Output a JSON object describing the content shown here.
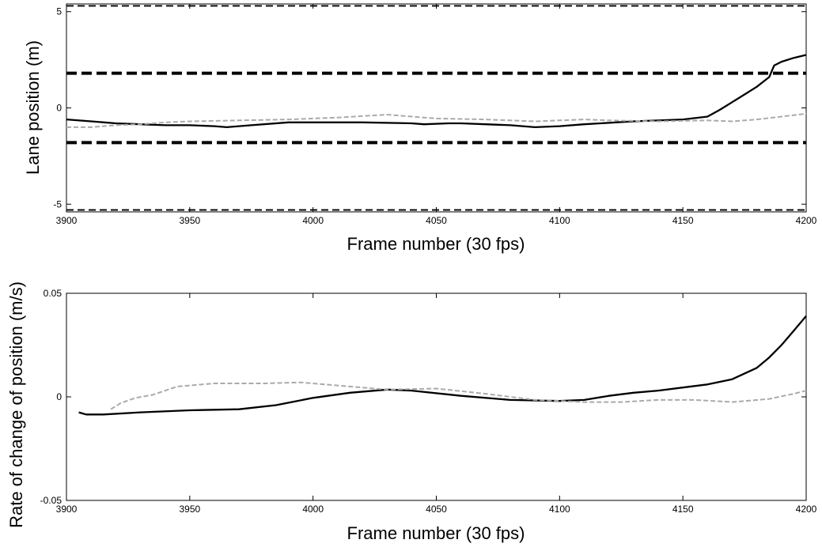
{
  "chart_data": [
    {
      "type": "line",
      "title": "",
      "xlabel": "Frame number (30 fps)",
      "ylabel": "Lane position (m)",
      "xlim": [
        3900,
        4200
      ],
      "ylim": [
        -5.4,
        5.4
      ],
      "xticks": [
        "3900",
        "3950",
        "4000",
        "4050",
        "4100",
        "4150",
        "4200"
      ],
      "yticks": [
        "5",
        "0",
        "-5"
      ],
      "grid": false,
      "series": [
        {
          "style": "solid",
          "color": "#000000",
          "x": [
            3900,
            3910,
            3920,
            3930,
            3940,
            3950,
            3960,
            3965,
            3975,
            3990,
            4000,
            4020,
            4040,
            4045,
            4055,
            4060,
            4070,
            4080,
            4090,
            4100,
            4110,
            4130,
            4150,
            4160,
            4165,
            4170,
            4175,
            4180,
            4183,
            4185,
            4187,
            4190,
            4195,
            4200
          ],
          "y": [
            -0.6,
            -0.7,
            -0.8,
            -0.85,
            -0.9,
            -0.9,
            -0.95,
            -1.0,
            -0.9,
            -0.75,
            -0.75,
            -0.75,
            -0.8,
            -0.85,
            -0.8,
            -0.8,
            -0.85,
            -0.9,
            -1.0,
            -0.95,
            -0.85,
            -0.7,
            -0.6,
            -0.45,
            -0.1,
            0.3,
            0.7,
            1.1,
            1.4,
            1.6,
            2.2,
            2.4,
            2.6,
            2.75
          ]
        },
        {
          "style": "dashed",
          "color": "#aaaaaa",
          "x": [
            3900,
            3910,
            3920,
            3930,
            3940,
            3950,
            3970,
            3990,
            4010,
            4030,
            4050,
            4070,
            4080,
            4090,
            4100,
            4110,
            4120,
            4140,
            4160,
            4170,
            4180,
            4190,
            4200
          ],
          "y": [
            -1.0,
            -1.0,
            -0.9,
            -0.85,
            -0.75,
            -0.7,
            -0.65,
            -0.6,
            -0.5,
            -0.35,
            -0.55,
            -0.6,
            -0.65,
            -0.7,
            -0.65,
            -0.6,
            -0.65,
            -0.7,
            -0.65,
            -0.7,
            -0.6,
            -0.45,
            -0.3
          ]
        }
      ],
      "reference_lines": [
        {
          "y": 5.3,
          "style": "thin-dashed"
        },
        {
          "y": 1.8,
          "style": "thick-dashed"
        },
        {
          "y": -1.8,
          "style": "thick-dashed"
        },
        {
          "y": -5.3,
          "style": "thin-dashed"
        }
      ]
    },
    {
      "type": "line",
      "title": "",
      "xlabel": "Frame number (30 fps)",
      "ylabel": "Rate of change of position (m/s)",
      "xlim": [
        3900,
        4200
      ],
      "ylim": [
        -0.05,
        0.05
      ],
      "xticks": [
        "3900",
        "3950",
        "4000",
        "4050",
        "4100",
        "4150",
        "4200"
      ],
      "yticks": [
        "0.05",
        "0",
        "-0.05"
      ],
      "grid": false,
      "series": [
        {
          "style": "solid",
          "color": "#000000",
          "x": [
            3905,
            3908,
            3915,
            3930,
            3950,
            3970,
            3985,
            4000,
            4015,
            4030,
            4040,
            4060,
            4080,
            4100,
            4110,
            4120,
            4130,
            4140,
            4150,
            4160,
            4170,
            4180,
            4185,
            4190,
            4195,
            4200
          ],
          "y": [
            -0.0075,
            -0.0085,
            -0.0085,
            -0.0075,
            -0.0065,
            -0.006,
            -0.004,
            -0.0005,
            0.002,
            0.0035,
            0.003,
            0.0005,
            -0.0015,
            -0.002,
            -0.0015,
            0.0005,
            0.002,
            0.003,
            0.0045,
            0.006,
            0.0085,
            0.014,
            0.019,
            0.025,
            0.032,
            0.039
          ]
        },
        {
          "style": "dashed",
          "color": "#aaaaaa",
          "x": [
            3918,
            3922,
            3928,
            3935,
            3945,
            3960,
            3980,
            3995,
            4010,
            4030,
            4050,
            4070,
            4090,
            4100,
            4110,
            4125,
            4140,
            4155,
            4170,
            4185,
            4195,
            4200
          ],
          "y": [
            -0.006,
            -0.003,
            -0.0005,
            0.001,
            0.005,
            0.0065,
            0.0065,
            0.007,
            0.0055,
            0.0035,
            0.004,
            0.0015,
            -0.0015,
            -0.002,
            -0.0025,
            -0.0025,
            -0.0015,
            -0.0015,
            -0.0025,
            -0.001,
            0.0015,
            0.003
          ]
        }
      ],
      "reference_lines": []
    }
  ]
}
